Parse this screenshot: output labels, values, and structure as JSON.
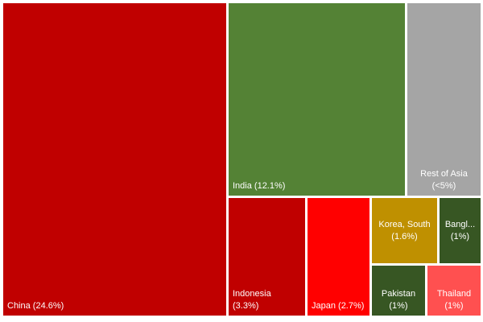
{
  "chart_data": {
    "type": "treemap",
    "items": [
      {
        "name": "China",
        "label": "China (24.6%)",
        "lines": [
          "China (24.6%)"
        ],
        "value": 24.6,
        "color": "#c00000",
        "align": "bottom-left"
      },
      {
        "name": "India",
        "label": "India (12.1%)",
        "lines": [
          "India (12.1%)"
        ],
        "value": 12.1,
        "color": "#548235",
        "align": "bottom-left"
      },
      {
        "name": "Rest of Asia",
        "label": "Rest of Asia (<5%)",
        "lines": [
          "Rest of Asia",
          "(<5%)"
        ],
        "value": null,
        "color": "#a5a5a5",
        "align": "bottom-center"
      },
      {
        "name": "Indonesia",
        "label": "Indonesia (3.3%)",
        "lines": [
          "Indonesia",
          "(3.3%)"
        ],
        "value": 3.3,
        "color": "#c00000",
        "align": "bottom-left"
      },
      {
        "name": "Japan",
        "label": "Japan (2.7%)",
        "lines": [
          "Japan (2.7%)"
        ],
        "value": 2.7,
        "color": "#ff0000",
        "align": "bottom-left"
      },
      {
        "name": "Korea, South",
        "label": "Korea, South (1.6%)",
        "lines": [
          "Korea, South",
          "(1.6%)"
        ],
        "value": 1.6,
        "color": "#bf9000",
        "align": "center"
      },
      {
        "name": "Bangl...",
        "label": "Bangl... (1%)",
        "lines": [
          "Bangl...",
          "(1%)"
        ],
        "value": 1,
        "color": "#375623",
        "align": "center"
      },
      {
        "name": "Pakistan",
        "label": "Pakistan (1%)",
        "lines": [
          "Pakistan",
          "(1%)"
        ],
        "value": 1,
        "color": "#375623",
        "align": "bottom-center"
      },
      {
        "name": "Thailand",
        "label": "Thailand (1%)",
        "lines": [
          "Thailand",
          "(1%)"
        ],
        "value": 1,
        "color": "#ff5050",
        "align": "bottom-center"
      }
    ]
  }
}
